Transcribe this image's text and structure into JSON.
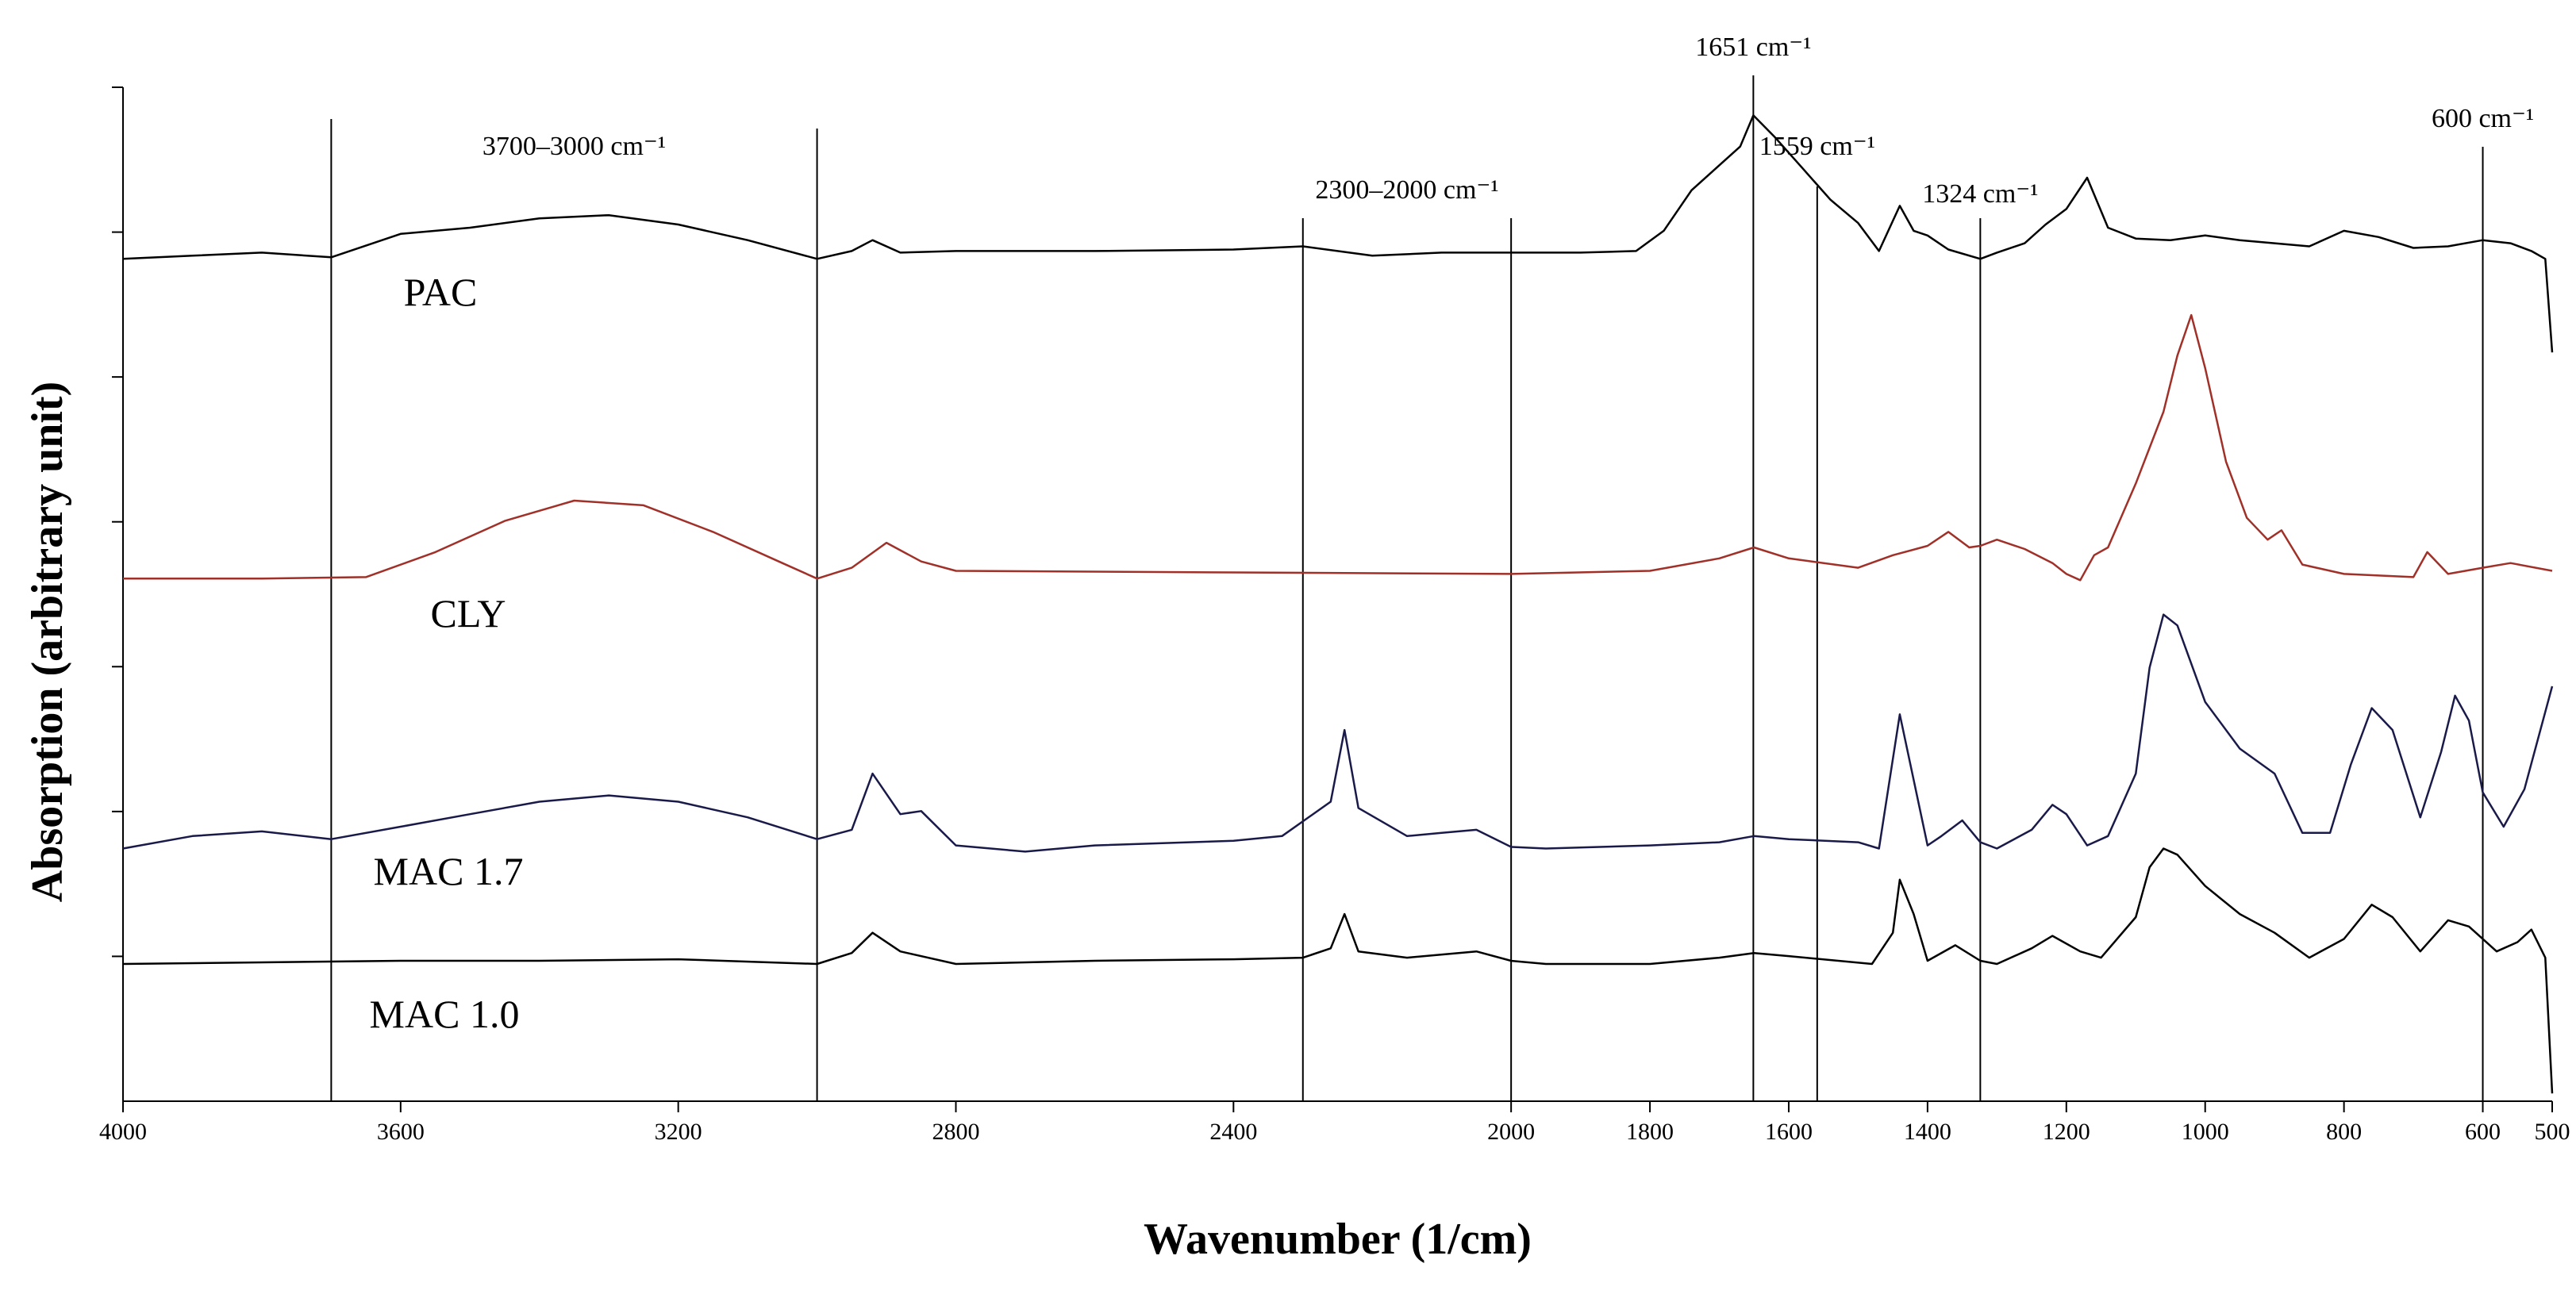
{
  "chart_data": {
    "type": "line",
    "title": "",
    "xlabel": "Wavenumber (1/cm)",
    "ylabel": "Absorption (arbitrary unit)",
    "xlim": [
      4000,
      500
    ],
    "x_reversed": true,
    "ylim": [
      0,
      6.5
    ],
    "x_ticks": [
      "4000",
      "3600",
      "3200",
      "2800",
      "2400",
      "2000",
      "1800",
      "1600",
      "1400",
      "1200",
      "1000",
      "800",
      "600",
      "500"
    ],
    "y_ticks": [
      "",
      "",
      "",
      "",
      "",
      "",
      ""
    ],
    "grid": false,
    "series": [
      {
        "name": "PAC",
        "label": "PAC",
        "color": "#000000",
        "points": [
          [
            4000,
            5.4
          ],
          [
            3900,
            5.42
          ],
          [
            3800,
            5.44
          ],
          [
            3700,
            5.41
          ],
          [
            3600,
            5.56
          ],
          [
            3500,
            5.6
          ],
          [
            3400,
            5.66
          ],
          [
            3300,
            5.68
          ],
          [
            3200,
            5.62
          ],
          [
            3100,
            5.52
          ],
          [
            3000,
            5.4
          ],
          [
            2950,
            5.45
          ],
          [
            2920,
            5.52
          ],
          [
            2880,
            5.44
          ],
          [
            2800,
            5.45
          ],
          [
            2600,
            5.45
          ],
          [
            2400,
            5.46
          ],
          [
            2300,
            5.48
          ],
          [
            2200,
            5.42
          ],
          [
            2100,
            5.44
          ],
          [
            2000,
            5.44
          ],
          [
            1900,
            5.44
          ],
          [
            1820,
            5.45
          ],
          [
            1780,
            5.58
          ],
          [
            1740,
            5.84
          ],
          [
            1700,
            6.0
          ],
          [
            1670,
            6.12
          ],
          [
            1651,
            6.32
          ],
          [
            1620,
            6.18
          ],
          [
            1580,
            5.98
          ],
          [
            1540,
            5.78
          ],
          [
            1500,
            5.63
          ],
          [
            1470,
            5.45
          ],
          [
            1440,
            5.74
          ],
          [
            1420,
            5.58
          ],
          [
            1400,
            5.55
          ],
          [
            1370,
            5.46
          ],
          [
            1324,
            5.4
          ],
          [
            1300,
            5.44
          ],
          [
            1260,
            5.5
          ],
          [
            1230,
            5.62
          ],
          [
            1200,
            5.72
          ],
          [
            1170,
            5.92
          ],
          [
            1140,
            5.6
          ],
          [
            1100,
            5.53
          ],
          [
            1050,
            5.52
          ],
          [
            1000,
            5.55
          ],
          [
            950,
            5.52
          ],
          [
            900,
            5.5
          ],
          [
            850,
            5.48
          ],
          [
            800,
            5.58
          ],
          [
            750,
            5.54
          ],
          [
            700,
            5.47
          ],
          [
            650,
            5.48
          ],
          [
            600,
            5.52
          ],
          [
            560,
            5.5
          ],
          [
            530,
            5.45
          ],
          [
            510,
            5.4
          ],
          [
            500,
            4.8
          ]
        ]
      },
      {
        "name": "CLY",
        "label": "CLY",
        "color": "#a03028",
        "points": [
          [
            4000,
            3.35
          ],
          [
            3800,
            3.35
          ],
          [
            3650,
            3.36
          ],
          [
            3550,
            3.52
          ],
          [
            3450,
            3.72
          ],
          [
            3350,
            3.85
          ],
          [
            3250,
            3.82
          ],
          [
            3150,
            3.65
          ],
          [
            3050,
            3.45
          ],
          [
            3000,
            3.35
          ],
          [
            2950,
            3.42
          ],
          [
            2900,
            3.58
          ],
          [
            2850,
            3.46
          ],
          [
            2800,
            3.4
          ],
          [
            2400,
            3.39
          ],
          [
            2000,
            3.38
          ],
          [
            1800,
            3.4
          ],
          [
            1700,
            3.48
          ],
          [
            1650,
            3.55
          ],
          [
            1600,
            3.48
          ],
          [
            1500,
            3.42
          ],
          [
            1450,
            3.5
          ],
          [
            1400,
            3.56
          ],
          [
            1370,
            3.65
          ],
          [
            1340,
            3.55
          ],
          [
            1324,
            3.56
          ],
          [
            1300,
            3.6
          ],
          [
            1260,
            3.54
          ],
          [
            1220,
            3.45
          ],
          [
            1200,
            3.38
          ],
          [
            1180,
            3.34
          ],
          [
            1160,
            3.5
          ],
          [
            1140,
            3.55
          ],
          [
            1100,
            3.96
          ],
          [
            1060,
            4.42
          ],
          [
            1040,
            4.78
          ],
          [
            1020,
            5.04
          ],
          [
            1000,
            4.7
          ],
          [
            970,
            4.1
          ],
          [
            940,
            3.74
          ],
          [
            910,
            3.6
          ],
          [
            890,
            3.66
          ],
          [
            860,
            3.44
          ],
          [
            800,
            3.38
          ],
          [
            700,
            3.36
          ],
          [
            680,
            3.52
          ],
          [
            650,
            3.38
          ],
          [
            600,
            3.42
          ],
          [
            560,
            3.45
          ],
          [
            500,
            3.4
          ]
        ]
      },
      {
        "name": "MAC 1.7",
        "label": "MAC 1.7",
        "color": "#1a1a4a",
        "points": [
          [
            4000,
            1.62
          ],
          [
            3900,
            1.7
          ],
          [
            3800,
            1.73
          ],
          [
            3700,
            1.68
          ],
          [
            3600,
            1.76
          ],
          [
            3500,
            1.84
          ],
          [
            3400,
            1.92
          ],
          [
            3300,
            1.96
          ],
          [
            3200,
            1.92
          ],
          [
            3100,
            1.82
          ],
          [
            3000,
            1.68
          ],
          [
            2950,
            1.74
          ],
          [
            2920,
            2.1
          ],
          [
            2880,
            1.84
          ],
          [
            2850,
            1.86
          ],
          [
            2800,
            1.64
          ],
          [
            2700,
            1.6
          ],
          [
            2600,
            1.64
          ],
          [
            2400,
            1.67
          ],
          [
            2330,
            1.7
          ],
          [
            2260,
            1.92
          ],
          [
            2240,
            2.38
          ],
          [
            2220,
            1.88
          ],
          [
            2150,
            1.7
          ],
          [
            2100,
            1.72
          ],
          [
            2050,
            1.74
          ],
          [
            2000,
            1.63
          ],
          [
            1950,
            1.62
          ],
          [
            1800,
            1.64
          ],
          [
            1700,
            1.66
          ],
          [
            1650,
            1.7
          ],
          [
            1600,
            1.68
          ],
          [
            1500,
            1.66
          ],
          [
            1470,
            1.62
          ],
          [
            1440,
            2.48
          ],
          [
            1420,
            2.06
          ],
          [
            1400,
            1.64
          ],
          [
            1380,
            1.7
          ],
          [
            1350,
            1.8
          ],
          [
            1324,
            1.66
          ],
          [
            1300,
            1.62
          ],
          [
            1250,
            1.74
          ],
          [
            1220,
            1.9
          ],
          [
            1200,
            1.84
          ],
          [
            1170,
            1.64
          ],
          [
            1140,
            1.7
          ],
          [
            1100,
            2.1
          ],
          [
            1080,
            2.78
          ],
          [
            1060,
            3.12
          ],
          [
            1040,
            3.05
          ],
          [
            1000,
            2.56
          ],
          [
            950,
            2.26
          ],
          [
            900,
            2.1
          ],
          [
            860,
            1.72
          ],
          [
            820,
            1.72
          ],
          [
            790,
            2.16
          ],
          [
            760,
            2.52
          ],
          [
            730,
            2.38
          ],
          [
            690,
            1.82
          ],
          [
            660,
            2.24
          ],
          [
            640,
            2.6
          ],
          [
            620,
            2.44
          ],
          [
            600,
            1.98
          ],
          [
            570,
            1.76
          ],
          [
            540,
            2.0
          ],
          [
            500,
            2.66
          ]
        ]
      },
      {
        "name": "MAC 1.0",
        "label": "MAC 1.0",
        "color": "#000000",
        "points": [
          [
            4000,
            0.88
          ],
          [
            3800,
            0.89
          ],
          [
            3600,
            0.9
          ],
          [
            3400,
            0.9
          ],
          [
            3200,
            0.91
          ],
          [
            3000,
            0.88
          ],
          [
            2950,
            0.95
          ],
          [
            2920,
            1.08
          ],
          [
            2880,
            0.96
          ],
          [
            2800,
            0.88
          ],
          [
            2600,
            0.9
          ],
          [
            2400,
            0.91
          ],
          [
            2300,
            0.92
          ],
          [
            2260,
            0.98
          ],
          [
            2240,
            1.2
          ],
          [
            2220,
            0.96
          ],
          [
            2150,
            0.92
          ],
          [
            2050,
            0.96
          ],
          [
            2000,
            0.9
          ],
          [
            1950,
            0.88
          ],
          [
            1800,
            0.88
          ],
          [
            1700,
            0.92
          ],
          [
            1650,
            0.95
          ],
          [
            1600,
            0.93
          ],
          [
            1480,
            0.88
          ],
          [
            1450,
            1.08
          ],
          [
            1440,
            1.42
          ],
          [
            1420,
            1.2
          ],
          [
            1400,
            0.9
          ],
          [
            1360,
            1.0
          ],
          [
            1324,
            0.9
          ],
          [
            1300,
            0.88
          ],
          [
            1250,
            0.98
          ],
          [
            1220,
            1.06
          ],
          [
            1180,
            0.96
          ],
          [
            1150,
            0.92
          ],
          [
            1100,
            1.18
          ],
          [
            1080,
            1.5
          ],
          [
            1060,
            1.62
          ],
          [
            1040,
            1.58
          ],
          [
            1000,
            1.38
          ],
          [
            950,
            1.2
          ],
          [
            900,
            1.08
          ],
          [
            850,
            0.92
          ],
          [
            800,
            1.04
          ],
          [
            760,
            1.26
          ],
          [
            730,
            1.18
          ],
          [
            690,
            0.96
          ],
          [
            650,
            1.16
          ],
          [
            620,
            1.12
          ],
          [
            580,
            0.96
          ],
          [
            550,
            1.02
          ],
          [
            530,
            1.1
          ],
          [
            510,
            0.92
          ],
          [
            500,
            0.05
          ]
        ]
      }
    ],
    "vertical_markers": [
      3700,
      3000,
      2300,
      2000,
      1651,
      1559,
      1324,
      600
    ],
    "annotations": [
      {
        "text": "3700–3000 cm⁻¹",
        "x": 3350
      },
      {
        "text": "2300–2000 cm⁻¹",
        "x": 2150
      },
      {
        "text": "1651 cm⁻¹",
        "x": 1651
      },
      {
        "text": "1559 cm⁻¹",
        "x": 1559
      },
      {
        "text": "1324 cm⁻¹",
        "x": 1324
      },
      {
        "text": "600 cm⁻¹",
        "x": 600
      }
    ]
  }
}
